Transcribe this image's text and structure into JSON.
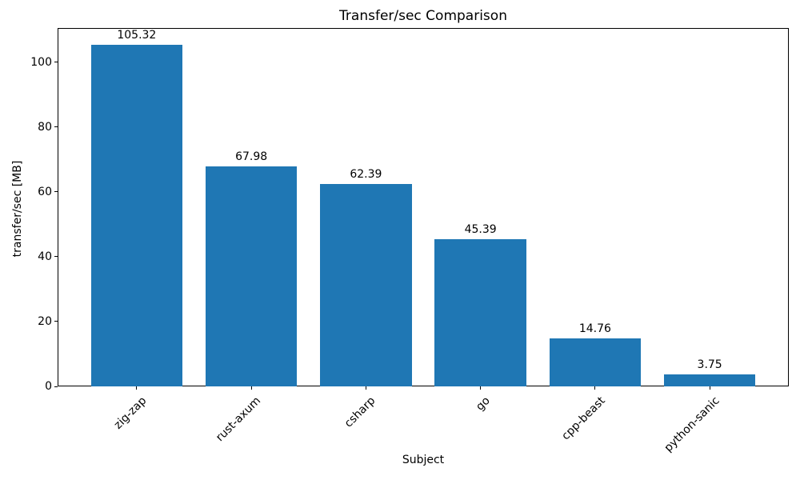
{
  "chart_data": {
    "type": "bar",
    "title": "Transfer/sec Comparison",
    "xlabel": "Subject",
    "ylabel": "transfer/sec [MB]",
    "categories": [
      "zig-zap",
      "rust-axum",
      "csharp",
      "go",
      "cpp-beast",
      "python-sanic"
    ],
    "values": [
      105.32,
      67.98,
      62.39,
      45.39,
      14.76,
      3.75
    ],
    "bar_labels": [
      "105.32",
      "67.98",
      "62.39",
      "45.39",
      "14.76",
      "3.75"
    ],
    "bar_color": "#1f77b4",
    "axis_color": "#000000",
    "text_color": "#000000",
    "ylim": [
      0,
      110.6
    ],
    "yticks": [
      0,
      20,
      40,
      60,
      80,
      100
    ],
    "x_tick_rotation": 45,
    "grid": false,
    "legend": "none"
  }
}
